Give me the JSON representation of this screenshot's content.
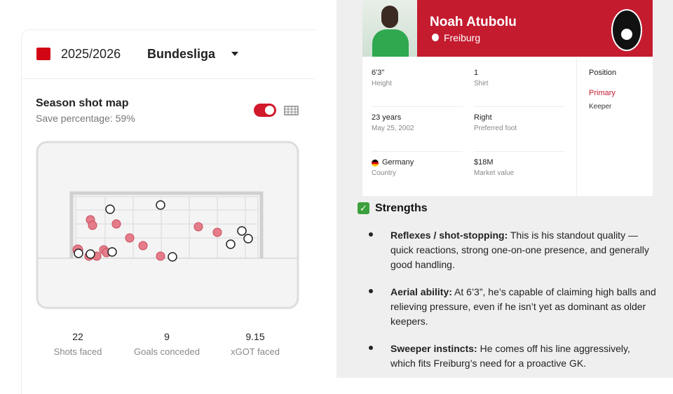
{
  "season": "2025/2026",
  "league": "Bundesliga",
  "shot_map": {
    "title": "Season shot map",
    "subtitle": "Save percentage: 59%",
    "stats": [
      {
        "value": "22",
        "label": "Shots faced"
      },
      {
        "value": "9",
        "label": "Goals conceded"
      },
      {
        "value": "9.15",
        "label": "xGOT faced"
      }
    ]
  },
  "profile": {
    "name": "Noah Atubolu",
    "club": "Freiburg",
    "fields": [
      {
        "value": "6'3\"",
        "label": "Height"
      },
      {
        "value": "1",
        "label": "Shirt"
      },
      {
        "value": "23 years",
        "label": "May 25, 2002"
      },
      {
        "value": "Right",
        "label": "Preferred foot"
      },
      {
        "value": "Germany",
        "label": "Country"
      },
      {
        "value": "$18M",
        "label": "Market value"
      }
    ],
    "position": {
      "title": "Position",
      "primary": "Primary",
      "role": "Keeper"
    }
  },
  "strengths": {
    "title": "Strengths",
    "items": [
      {
        "lead": "Reflexes / shot-stopping:",
        "text": " This is his standout quality — quick reactions, strong one-on-one presence, and generally good handling."
      },
      {
        "lead": "Aerial ability:",
        "text": " At 6’3”, he’s capable of claiming high balls and relieving pressure, even if he isn’t yet as dominant as older keepers."
      },
      {
        "lead": "Sweeper instincts:",
        "text": " He comes off his line aggressively, which fits Freiburg’s need for a proactive GK."
      }
    ]
  }
}
